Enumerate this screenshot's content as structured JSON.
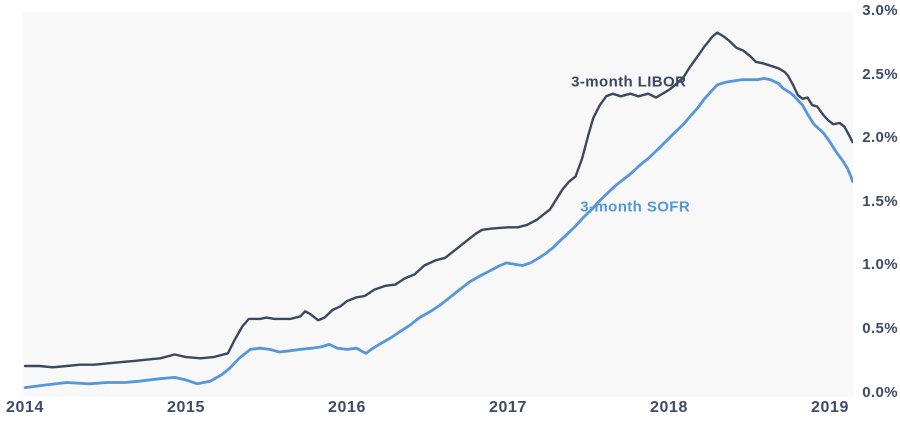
{
  "colors": {
    "libor_line": "#3a4860",
    "sofr_line": "#5597d8",
    "axis_text": "#3d4b66",
    "plot_background": "#f8f8f9",
    "page_background": "#ffffff"
  },
  "chart_data": {
    "type": "line",
    "title": "",
    "xlabel": "",
    "ylabel": "",
    "grid": false,
    "legend_position": "inline-annotations",
    "xlim": [
      2014,
      2019.2
    ],
    "ylim": [
      0,
      3.0
    ],
    "x_tick_labels": [
      "2014",
      "2015",
      "2016",
      "2017",
      "2018",
      "2019"
    ],
    "x_tick_values": [
      2014,
      2015,
      2016,
      2017,
      2018,
      2019
    ],
    "y_tick_labels": [
      "3.0%",
      "2.5%",
      "2.0%",
      "1.5%",
      "1.0%",
      "0.5%",
      "0.0%"
    ],
    "y_tick_values": [
      3.0,
      2.5,
      2.0,
      1.5,
      1.0,
      0.5,
      0.0
    ],
    "series": [
      {
        "name": "3-month LIBOR",
        "color": "#3a4860",
        "stroke_width": 2.4,
        "label_pos": {
          "x": 2017.75,
          "y": 2.44
        },
        "points": [
          [
            2014.0,
            0.21
          ],
          [
            2014.09,
            0.21
          ],
          [
            2014.17,
            0.2
          ],
          [
            2014.26,
            0.21
          ],
          [
            2014.34,
            0.22
          ],
          [
            2014.43,
            0.22
          ],
          [
            2014.51,
            0.23
          ],
          [
            2014.59,
            0.24
          ],
          [
            2014.68,
            0.25
          ],
          [
            2014.76,
            0.26
          ],
          [
            2014.84,
            0.27
          ],
          [
            2014.93,
            0.3
          ],
          [
            2015.0,
            0.28
          ],
          [
            2015.09,
            0.27
          ],
          [
            2015.17,
            0.28
          ],
          [
            2015.26,
            0.31
          ],
          [
            2015.3,
            0.41
          ],
          [
            2015.35,
            0.52
          ],
          [
            2015.39,
            0.58
          ],
          [
            2015.46,
            0.58
          ],
          [
            2015.5,
            0.59
          ],
          [
            2015.55,
            0.58
          ],
          [
            2015.6,
            0.58
          ],
          [
            2015.65,
            0.58
          ],
          [
            2015.71,
            0.6
          ],
          [
            2015.74,
            0.64
          ],
          [
            2015.77,
            0.62
          ],
          [
            2015.82,
            0.57
          ],
          [
            2015.86,
            0.59
          ],
          [
            2015.91,
            0.65
          ],
          [
            2015.96,
            0.68
          ],
          [
            2016.0,
            0.72
          ],
          [
            2016.06,
            0.75
          ],
          [
            2016.11,
            0.76
          ],
          [
            2016.17,
            0.81
          ],
          [
            2016.24,
            0.84
          ],
          [
            2016.3,
            0.85
          ],
          [
            2016.36,
            0.9
          ],
          [
            2016.42,
            0.93
          ],
          [
            2016.48,
            1.0
          ],
          [
            2016.55,
            1.04
          ],
          [
            2016.61,
            1.06
          ],
          [
            2016.67,
            1.12
          ],
          [
            2016.73,
            1.18
          ],
          [
            2016.8,
            1.25
          ],
          [
            2016.84,
            1.28
          ],
          [
            2016.9,
            1.29
          ],
          [
            2017.0,
            1.3
          ],
          [
            2017.06,
            1.3
          ],
          [
            2017.12,
            1.32
          ],
          [
            2017.18,
            1.36
          ],
          [
            2017.22,
            1.4
          ],
          [
            2017.26,
            1.44
          ],
          [
            2017.3,
            1.52
          ],
          [
            2017.34,
            1.6
          ],
          [
            2017.38,
            1.66
          ],
          [
            2017.42,
            1.7
          ],
          [
            2017.46,
            1.84
          ],
          [
            2017.5,
            2.03
          ],
          [
            2017.53,
            2.16
          ],
          [
            2017.57,
            2.26
          ],
          [
            2017.61,
            2.33
          ],
          [
            2017.65,
            2.35
          ],
          [
            2017.7,
            2.33
          ],
          [
            2017.76,
            2.35
          ],
          [
            2017.81,
            2.33
          ],
          [
            2017.87,
            2.35
          ],
          [
            2017.92,
            2.32
          ],
          [
            2017.96,
            2.35
          ],
          [
            2018.0,
            2.38
          ],
          [
            2018.04,
            2.42
          ],
          [
            2018.09,
            2.48
          ],
          [
            2018.13,
            2.56
          ],
          [
            2018.17,
            2.63
          ],
          [
            2018.22,
            2.72
          ],
          [
            2018.27,
            2.8
          ],
          [
            2018.3,
            2.83
          ],
          [
            2018.34,
            2.8
          ],
          [
            2018.37,
            2.77
          ],
          [
            2018.42,
            2.71
          ],
          [
            2018.46,
            2.69
          ],
          [
            2018.5,
            2.65
          ],
          [
            2018.54,
            2.6
          ],
          [
            2018.58,
            2.59
          ],
          [
            2018.63,
            2.57
          ],
          [
            2018.68,
            2.55
          ],
          [
            2018.72,
            2.52
          ],
          [
            2018.74,
            2.49
          ],
          [
            2018.77,
            2.42
          ],
          [
            2018.8,
            2.34
          ],
          [
            2018.83,
            2.31
          ],
          [
            2018.86,
            2.32
          ],
          [
            2018.89,
            2.26
          ],
          [
            2018.92,
            2.25
          ],
          [
            2018.96,
            2.18
          ],
          [
            2018.99,
            2.14
          ],
          [
            2019.02,
            2.11
          ],
          [
            2019.06,
            2.12
          ],
          [
            2019.09,
            2.09
          ],
          [
            2019.12,
            2.02
          ],
          [
            2019.14,
            1.97
          ]
        ]
      },
      {
        "name": "3-month SOFR",
        "color": "#5597d8",
        "stroke_width": 2.8,
        "label_pos": {
          "x": 2017.79,
          "y": 1.46
        },
        "points": [
          [
            2014.0,
            0.04
          ],
          [
            2014.12,
            0.06
          ],
          [
            2014.26,
            0.08
          ],
          [
            2014.4,
            0.07
          ],
          [
            2014.51,
            0.08
          ],
          [
            2014.62,
            0.08
          ],
          [
            2014.71,
            0.09
          ],
          [
            2014.84,
            0.11
          ],
          [
            2014.93,
            0.12
          ],
          [
            2015.0,
            0.1
          ],
          [
            2015.07,
            0.07
          ],
          [
            2015.15,
            0.09
          ],
          [
            2015.22,
            0.14
          ],
          [
            2015.27,
            0.19
          ],
          [
            2015.33,
            0.27
          ],
          [
            2015.4,
            0.34
          ],
          [
            2015.46,
            0.35
          ],
          [
            2015.52,
            0.34
          ],
          [
            2015.58,
            0.32
          ],
          [
            2015.65,
            0.33
          ],
          [
            2015.71,
            0.34
          ],
          [
            2015.78,
            0.35
          ],
          [
            2015.84,
            0.36
          ],
          [
            2015.89,
            0.38
          ],
          [
            2015.94,
            0.35
          ],
          [
            2016.0,
            0.34
          ],
          [
            2016.06,
            0.35
          ],
          [
            2016.1,
            0.32
          ],
          [
            2016.12,
            0.31
          ],
          [
            2016.15,
            0.34
          ],
          [
            2016.2,
            0.38
          ],
          [
            2016.27,
            0.43
          ],
          [
            2016.33,
            0.48
          ],
          [
            2016.39,
            0.53
          ],
          [
            2016.45,
            0.59
          ],
          [
            2016.52,
            0.64
          ],
          [
            2016.58,
            0.69
          ],
          [
            2016.64,
            0.75
          ],
          [
            2016.7,
            0.81
          ],
          [
            2016.76,
            0.87
          ],
          [
            2016.83,
            0.92
          ],
          [
            2016.89,
            0.96
          ],
          [
            2016.95,
            1.0
          ],
          [
            2016.99,
            1.02
          ],
          [
            2017.04,
            1.01
          ],
          [
            2017.09,
            1.0
          ],
          [
            2017.14,
            1.02
          ],
          [
            2017.18,
            1.05
          ],
          [
            2017.23,
            1.09
          ],
          [
            2017.28,
            1.14
          ],
          [
            2017.32,
            1.19
          ],
          [
            2017.37,
            1.25
          ],
          [
            2017.42,
            1.31
          ],
          [
            2017.47,
            1.38
          ],
          [
            2017.52,
            1.44
          ],
          [
            2017.57,
            1.51
          ],
          [
            2017.62,
            1.57
          ],
          [
            2017.67,
            1.63
          ],
          [
            2017.72,
            1.68
          ],
          [
            2017.77,
            1.73
          ],
          [
            2017.82,
            1.79
          ],
          [
            2017.87,
            1.84
          ],
          [
            2017.92,
            1.9
          ],
          [
            2017.96,
            1.95
          ],
          [
            2018.0,
            2.0
          ],
          [
            2018.04,
            2.05
          ],
          [
            2018.09,
            2.11
          ],
          [
            2018.13,
            2.17
          ],
          [
            2018.18,
            2.24
          ],
          [
            2018.22,
            2.31
          ],
          [
            2018.27,
            2.38
          ],
          [
            2018.3,
            2.42
          ],
          [
            2018.35,
            2.44
          ],
          [
            2018.4,
            2.45
          ],
          [
            2018.45,
            2.46
          ],
          [
            2018.5,
            2.46
          ],
          [
            2018.55,
            2.46
          ],
          [
            2018.59,
            2.47
          ],
          [
            2018.63,
            2.46
          ],
          [
            2018.68,
            2.43
          ],
          [
            2018.71,
            2.39
          ],
          [
            2018.75,
            2.36
          ],
          [
            2018.77,
            2.34
          ],
          [
            2018.8,
            2.3
          ],
          [
            2018.83,
            2.26
          ],
          [
            2018.86,
            2.19
          ],
          [
            2018.9,
            2.11
          ],
          [
            2018.96,
            2.04
          ],
          [
            2019.0,
            1.97
          ],
          [
            2019.04,
            1.89
          ],
          [
            2019.08,
            1.82
          ],
          [
            2019.11,
            1.76
          ],
          [
            2019.13,
            1.7
          ],
          [
            2019.14,
            1.66
          ]
        ]
      }
    ]
  }
}
